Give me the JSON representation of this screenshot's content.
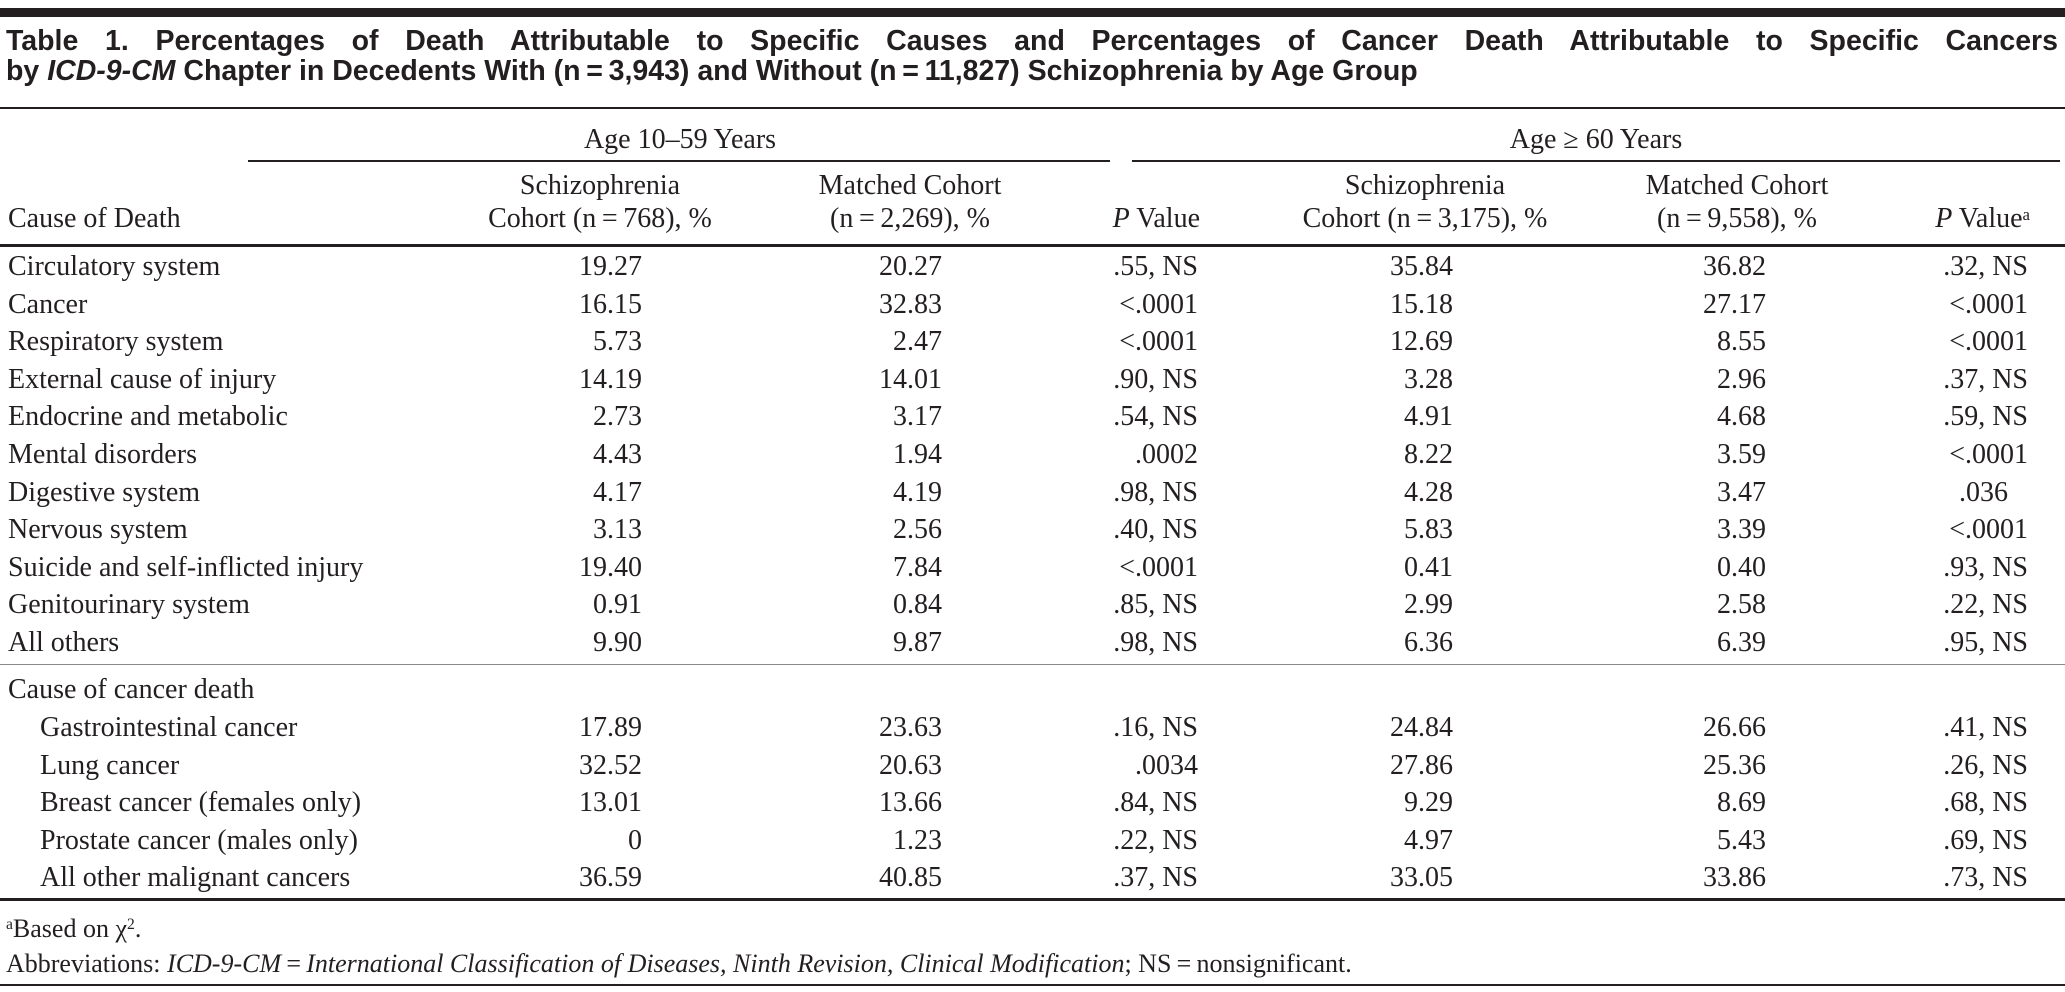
{
  "title": {
    "line1": "Table 1. Percentages of Death Attributable to Specific Causes and Percentages of Cancer Death Attributable to Specific Cancers",
    "line2_prefix": "by ",
    "line2_italic": "ICD-9-CM",
    "line2_rest": " Chapter in Decedents With (n = 3,943) and Without (n = 11,827) Schizophrenia by Age Group"
  },
  "header": {
    "cause": "Cause of Death",
    "group1": "Age 10–59 Years",
    "group2": "Age ≥ 60 Years",
    "g1_col1": [
      "Schizophrenia",
      "Cohort (n = 768), %"
    ],
    "g1_col2": [
      "Matched Cohort",
      "(n = 2,269), %"
    ],
    "g2_col1": [
      "Schizophrenia",
      "Cohort (n = 3,175), %"
    ],
    "g2_col2": [
      "Matched Cohort",
      "(n = 9,558), %"
    ],
    "p_italic": "P",
    "p_rest": " Value",
    "p_sup": "a"
  },
  "rows": [
    {
      "cause": "Circulatory system",
      "values": [
        "19.27",
        "20.27",
        ".55, NS",
        "35.84",
        "36.82",
        ".32, NS"
      ]
    },
    {
      "cause": "Cancer",
      "values": [
        "16.15",
        "32.83",
        "<.0001",
        "15.18",
        "27.17",
        "<.0001"
      ]
    },
    {
      "cause": "Respiratory system",
      "values": [
        "5.73",
        "2.47",
        "<.0001",
        "12.69",
        "8.55",
        "<.0001"
      ]
    },
    {
      "cause": "External cause of injury",
      "values": [
        "14.19",
        "14.01",
        ".90, NS",
        "3.28",
        "2.96",
        ".37, NS"
      ]
    },
    {
      "cause": "Endocrine and metabolic",
      "values": [
        "2.73",
        "3.17",
        ".54, NS",
        "4.91",
        "4.68",
        ".59, NS"
      ]
    },
    {
      "cause": "Mental disorders",
      "values": [
        "4.43",
        "1.94",
        ".0002",
        "8.22",
        "3.59",
        "<.0001"
      ]
    },
    {
      "cause": "Digestive system",
      "values": [
        "4.17",
        "4.19",
        ".98, NS",
        "4.28",
        "3.47",
        ".036"
      ]
    },
    {
      "cause": "Nervous system",
      "values": [
        "3.13",
        "2.56",
        ".40, NS",
        "5.83",
        "3.39",
        "<.0001"
      ]
    },
    {
      "cause": "Suicide and self-inflicted injury",
      "values": [
        "19.40",
        "7.84",
        "<.0001",
        "0.41",
        "0.40",
        ".93, NS"
      ]
    },
    {
      "cause": "Genitourinary system",
      "values": [
        "0.91",
        "0.84",
        ".85, NS",
        "2.99",
        "2.58",
        ".22, NS"
      ]
    },
    {
      "cause": "All others",
      "values": [
        "9.90",
        "9.87",
        ".98, NS",
        "6.36",
        "6.39",
        ".95, NS"
      ]
    }
  ],
  "cancer_section": {
    "label": "Cause of cancer death",
    "rows": [
      {
        "cause": "Gastrointestinal cancer",
        "values": [
          "17.89",
          "23.63",
          ".16, NS",
          "24.84",
          "26.66",
          ".41, NS"
        ]
      },
      {
        "cause": "Lung cancer",
        "values": [
          "32.52",
          "20.63",
          ".0034",
          "27.86",
          "25.36",
          ".26, NS"
        ]
      },
      {
        "cause": "Breast cancer (females only)",
        "values": [
          "13.01",
          "13.66",
          ".84, NS",
          "9.29",
          "8.69",
          ".68, NS"
        ]
      },
      {
        "cause": "Prostate cancer (males only)",
        "values": [
          "0",
          "1.23",
          ".22, NS",
          "4.97",
          "5.43",
          ".69, NS"
        ]
      },
      {
        "cause": "All other malignant cancers",
        "values": [
          "36.59",
          "40.85",
          ".37, NS",
          "33.05",
          "33.86",
          ".73, NS"
        ]
      }
    ]
  },
  "footnotes": {
    "a_sup": "a",
    "a_text": "Based on χ",
    "a_exp": "2",
    "a_end": ".",
    "abbr_prefix": "Abbreviations: ",
    "abbr_italic1": "ICD-9-CM",
    "abbr_eq": " = ",
    "abbr_italic2": "International Classification of Diseases, Ninth Revision, Clinical Modification",
    "abbr_rest": "; NS = nonsignificant."
  }
}
